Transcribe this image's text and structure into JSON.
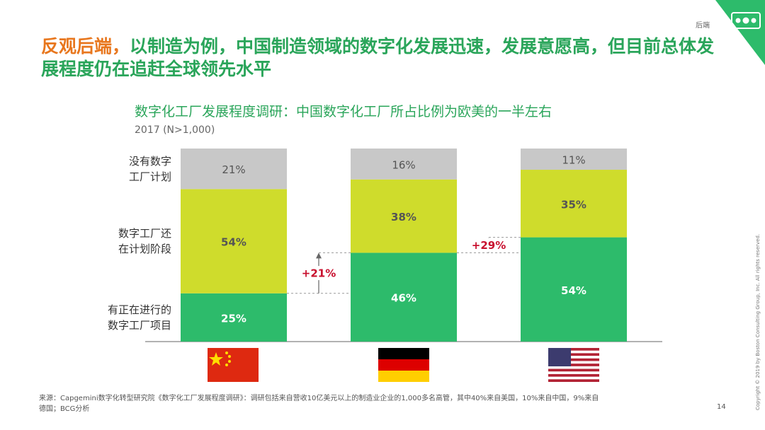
{
  "section": "后端",
  "header": {
    "highlight": "反观后端，",
    "title": "以制造为例，中国制造领域的数字化发展迅速，发展意愿高，但目前总体发展程度仍在追赶全球领先水平"
  },
  "chart_data": {
    "type": "stacked-bar",
    "title": "数字化工厂发展程度调研：中国数字化工厂所占比例为欧美的一半左右",
    "subtitle": "2017 (N>1,000)",
    "categories": [
      null,
      null,
      null
    ],
    "series": [
      {
        "name": "有正在进行的\n数字工厂项目",
        "color": "#2dbb6b",
        "values": [
          25,
          46,
          54
        ],
        "value_labels": [
          "25%",
          "46%",
          "54%"
        ]
      },
      {
        "name": "数字工厂还\n在计划阶段",
        "color": "#cfdc2c",
        "values": [
          54,
          38,
          35
        ],
        "value_labels": [
          "54%",
          "38%",
          "35%"
        ]
      },
      {
        "name": "没有数字\n工厂计划",
        "color": "#c8c8c8",
        "values": [
          21,
          16,
          11
        ],
        "value_labels": [
          "21%",
          "16%",
          "11%"
        ]
      }
    ],
    "ylim": [
      0,
      100
    ],
    "annotations": [
      {
        "text": "+21%"
      },
      {
        "text": "+29%"
      }
    ]
  },
  "footer": {
    "source": "来源：Capgemini数字化转型研究院《数字化工厂发展程度调研》：调研包括来自营收10亿美元以上的制造业企业的1,000多名高管，其中40%来自美国，10%来自中国，9%来自德国；BCG分析",
    "page": "14",
    "copyright": "Copyright © 2019 by Boston Consulting Group, Inc. All rights reserved."
  }
}
